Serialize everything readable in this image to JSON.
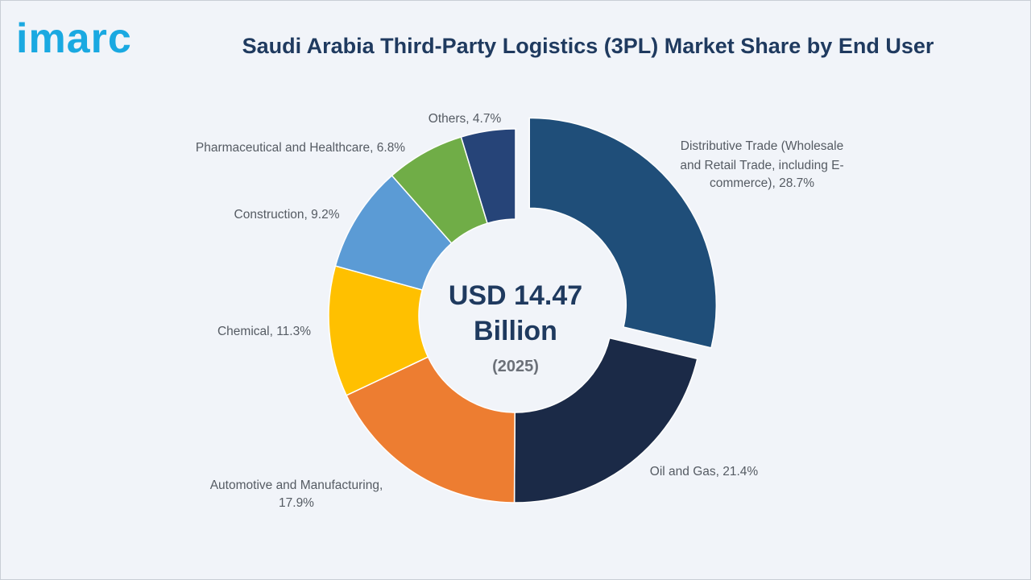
{
  "brand": {
    "logo_text": "imarc"
  },
  "chart_data": {
    "type": "pie",
    "title": "Saudi Arabia Third-Party Logistics (3PL) Market Share by End User",
    "center": {
      "value_line1": "USD 14.47",
      "value_line2": "Billion",
      "year": "(2025)"
    },
    "unit": "%",
    "slices": [
      {
        "label": "Distributive Trade (Wholesale and Retail Trade, including E-commerce), 28.7%",
        "value": 28.7,
        "color": "#1f4e79",
        "exploded": true
      },
      {
        "label": "Oil and Gas, 21.4%",
        "value": 21.4,
        "color": "#1b2a47",
        "exploded": false
      },
      {
        "label": "Automotive and Manufacturing, 17.9%",
        "value": 17.9,
        "color": "#ed7d31",
        "exploded": false
      },
      {
        "label": "Chemical, 11.3%",
        "value": 11.3,
        "color": "#ffc000",
        "exploded": false
      },
      {
        "label": "Construction, 9.2%",
        "value": 9.2,
        "color": "#5b9bd5",
        "exploded": false
      },
      {
        "label": "Pharmaceutical and Healthcare, 6.8%",
        "value": 6.8,
        "color": "#70ad47",
        "exploded": false
      },
      {
        "label": "Others, 4.7%",
        "value": 4.7,
        "color": "#264478",
        "exploded": false
      }
    ]
  }
}
